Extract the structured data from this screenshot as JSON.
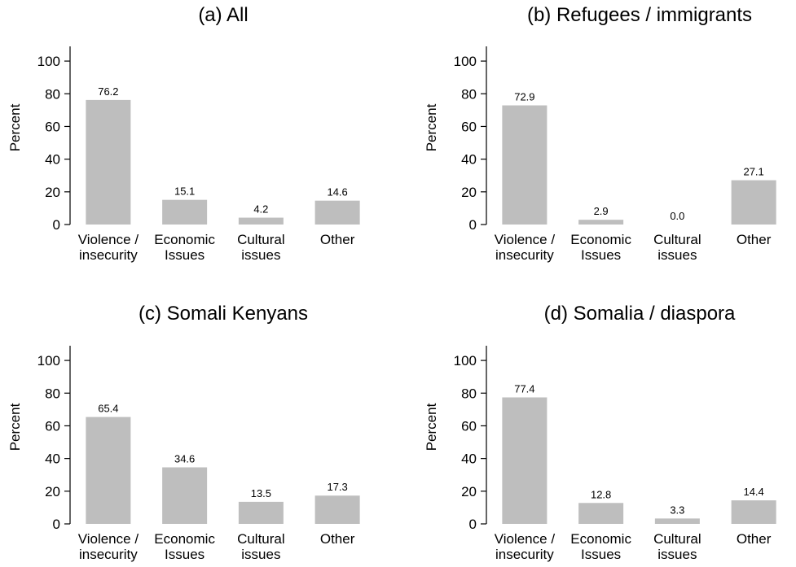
{
  "chart_data": [
    {
      "type": "bar",
      "title": "(a) All",
      "ylabel": "Percent",
      "xlabel": "",
      "ylim": [
        0,
        100
      ],
      "yticks": [
        0,
        20,
        40,
        60,
        80,
        100
      ],
      "categories": [
        [
          "Violence /",
          "insecurity"
        ],
        [
          "Economic",
          "Issues"
        ],
        [
          "Cultural",
          "issues"
        ],
        [
          "Other"
        ]
      ],
      "values": [
        76.2,
        15.1,
        4.2,
        14.6
      ],
      "data_labels": [
        "76.2",
        "15.1",
        "4.2",
        "14.6"
      ],
      "bar_color": "#bebebe",
      "grid": false,
      "legend": "none"
    },
    {
      "type": "bar",
      "title": "(b) Refugees / immigrants",
      "ylabel": "Percent",
      "xlabel": "",
      "ylim": [
        0,
        100
      ],
      "yticks": [
        0,
        20,
        40,
        60,
        80,
        100
      ],
      "categories": [
        [
          "Violence /",
          "insecurity"
        ],
        [
          "Economic",
          "Issues"
        ],
        [
          "Cultural",
          "issues"
        ],
        [
          "Other"
        ]
      ],
      "values": [
        72.9,
        2.9,
        0.0,
        27.1
      ],
      "data_labels": [
        "72.9",
        "2.9",
        "0.0",
        "27.1"
      ],
      "bar_color": "#bebebe",
      "grid": false,
      "legend": "none"
    },
    {
      "type": "bar",
      "title": "(c) Somali Kenyans",
      "ylabel": "Percent",
      "xlabel": "",
      "ylim": [
        0,
        100
      ],
      "yticks": [
        0,
        20,
        40,
        60,
        80,
        100
      ],
      "categories": [
        [
          "Violence /",
          "insecurity"
        ],
        [
          "Economic",
          "Issues"
        ],
        [
          "Cultural",
          "issues"
        ],
        [
          "Other"
        ]
      ],
      "values": [
        65.4,
        34.6,
        13.5,
        17.3
      ],
      "data_labels": [
        "65.4",
        "34.6",
        "13.5",
        "17.3"
      ],
      "bar_color": "#bebebe",
      "grid": false,
      "legend": "none"
    },
    {
      "type": "bar",
      "title": "(d) Somalia / diaspora",
      "ylabel": "Percent",
      "xlabel": "",
      "ylim": [
        0,
        100
      ],
      "yticks": [
        0,
        20,
        40,
        60,
        80,
        100
      ],
      "categories": [
        [
          "Violence /",
          "insecurity"
        ],
        [
          "Economic",
          "Issues"
        ],
        [
          "Cultural",
          "issues"
        ],
        [
          "Other"
        ]
      ],
      "values": [
        77.4,
        12.8,
        3.3,
        14.4
      ],
      "data_labels": [
        "77.4",
        "12.8",
        "3.3",
        "14.4"
      ],
      "bar_color": "#bebebe",
      "grid": false,
      "legend": "none"
    }
  ]
}
